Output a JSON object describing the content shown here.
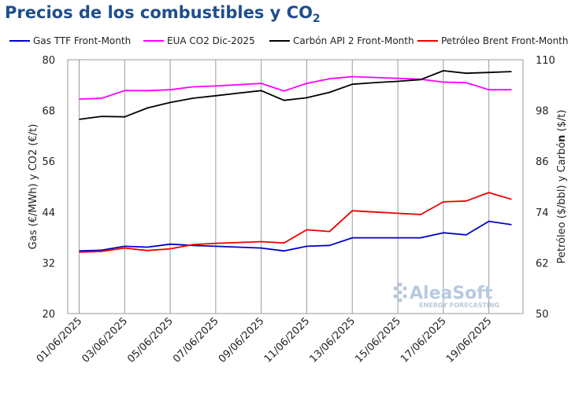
{
  "title_main": "Precios de los combustibles y CO",
  "title_sub": "2",
  "watermark": {
    "brand": "AleaSoft",
    "tagline": "ENERGY FORECASTING"
  },
  "chart_data": {
    "type": "line",
    "x": [
      "01/06/2025",
      "02/06/2025",
      "03/06/2025",
      "04/06/2025",
      "05/06/2025",
      "06/06/2025",
      "07/06/2025",
      "08/06/2025",
      "09/06/2025",
      "10/06/2025",
      "11/06/2025",
      "12/06/2025",
      "13/06/2025",
      "14/06/2025",
      "15/06/2025",
      "16/06/2025",
      "17/06/2025",
      "18/06/2025",
      "19/06/2025",
      "20/06/2025"
    ],
    "x_tick_labels": [
      "01/06/2025",
      "03/06/2025",
      "05/06/2025",
      "07/06/2025",
      "09/06/2025",
      "11/06/2025",
      "13/06/2025",
      "15/06/2025",
      "17/06/2025",
      "19/06/2025"
    ],
    "ylabel_left": "Gas (€/MWh) y CO2 (€/t)",
    "ylabel_right_prefix": "Petróleo ($/bbl) y Carbó",
    "ylabel_right_bold": "n",
    "ylabel_right_suffix": " ($/t)",
    "ylim_left": [
      20,
      80
    ],
    "yticks_left": [
      "20",
      "32",
      "44",
      "56",
      "68",
      "80"
    ],
    "ylim_right": [
      50,
      110
    ],
    "yticks_right": [
      "50",
      "62",
      "74",
      "86",
      "98",
      "110"
    ],
    "grid": "vertical",
    "legend_position": "top",
    "series": [
      {
        "name": "Gas TTF Front-Month",
        "axis": "left",
        "color": "#0000cc",
        "values": [
          34.8,
          35.0,
          35.9,
          35.7,
          36.4,
          36.1,
          35.9,
          35.7,
          35.5,
          34.8,
          35.9,
          36.1,
          37.9,
          37.9,
          37.9,
          37.9,
          39.1,
          38.6,
          41.8,
          41.0
        ]
      },
      {
        "name": "EUA CO2 Dic-2025",
        "axis": "left",
        "color": "#ff00ff",
        "values": [
          70.7,
          70.9,
          72.7,
          72.7,
          72.9,
          73.6,
          73.8,
          74.1,
          74.4,
          72.6,
          74.4,
          75.5,
          76.0,
          75.8,
          75.6,
          75.4,
          74.7,
          74.6,
          72.9,
          72.9
        ]
      },
      {
        "name": "Carbón API 2 Front-Month",
        "axis": "right",
        "color": "#000000",
        "values": [
          95.9,
          96.6,
          96.5,
          98.6,
          99.9,
          100.9,
          101.5,
          102.1,
          102.7,
          100.4,
          101.0,
          102.3,
          104.2,
          104.6,
          104.9,
          105.3,
          107.4,
          106.8,
          107.0,
          107.2
        ]
      },
      {
        "name": "Petróleo Brent Front-Month",
        "axis": "right",
        "color": "#ee0000",
        "values": [
          64.5,
          64.7,
          65.5,
          64.9,
          65.3,
          66.3,
          66.6,
          66.8,
          67.0,
          66.7,
          69.8,
          69.4,
          74.3,
          74.0,
          73.7,
          73.4,
          76.4,
          76.6,
          78.6,
          77.0
        ]
      }
    ]
  }
}
